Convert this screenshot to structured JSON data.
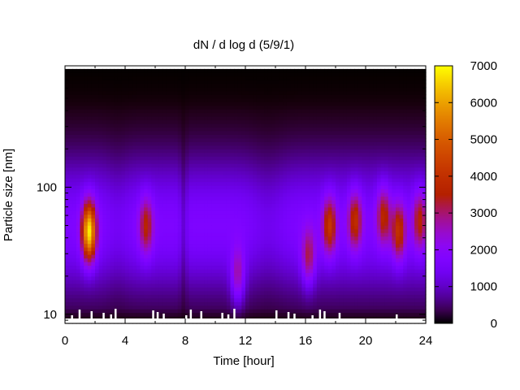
{
  "chart_data": {
    "type": "heatmap",
    "title": "dN / d log d (5/9/1)",
    "xlabel": "Time [hour]",
    "ylabel": "Particle size [nm]",
    "x_ticks": [
      0,
      4,
      8,
      12,
      16,
      20,
      24
    ],
    "y_ticks": [
      10,
      100
    ],
    "xlim": [
      0,
      24
    ],
    "ylim": [
      8.5,
      900
    ],
    "y_scale": "log",
    "colorbar": {
      "ticks": [
        0,
        1000,
        2000,
        3000,
        4000,
        5000,
        6000,
        7000
      ],
      "range": [
        0,
        7000
      ],
      "colormap": "gnuplot (black-purple-red-yellow)"
    },
    "background_level": 1700,
    "blobs": [
      {
        "t": 1.6,
        "d": 45,
        "peak": 6200
      },
      {
        "t": 5.4,
        "d": 50,
        "peak": 3000
      },
      {
        "t": 11.5,
        "d": 20,
        "peak": 2700
      },
      {
        "t": 16.2,
        "d": 28,
        "peak": 2800
      },
      {
        "t": 17.6,
        "d": 50,
        "peak": 3500
      },
      {
        "t": 19.3,
        "d": 55,
        "peak": 3300
      },
      {
        "t": 21.2,
        "d": 60,
        "peak": 3100
      },
      {
        "t": 22.2,
        "d": 45,
        "peak": 3400
      },
      {
        "t": 23.6,
        "d": 55,
        "peak": 3000
      }
    ]
  }
}
